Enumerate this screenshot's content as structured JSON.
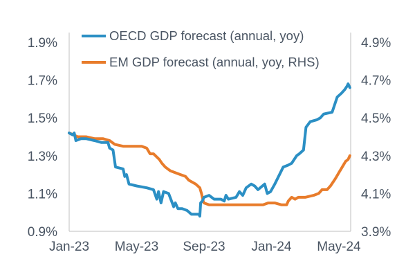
{
  "chart_data": {
    "type": "line",
    "title": "",
    "xlabel": "",
    "ylabel": "",
    "x_tick_labels": [
      "Jan-23",
      "May-23",
      "Sep-23",
      "Jan-24",
      "May-24"
    ],
    "x_tick_positions_months": [
      0,
      4,
      8,
      12,
      16
    ],
    "x_range_months": [
      0,
      16.7
    ],
    "y_left": {
      "ticks": [
        0.9,
        1.1,
        1.3,
        1.5,
        1.7,
        1.9
      ],
      "tick_labels": [
        "0.9%",
        "1.1%",
        "1.3%",
        "1.5%",
        "1.7%",
        "1.9%"
      ],
      "ylim": [
        0.9,
        1.9
      ]
    },
    "y_right": {
      "ticks": [
        3.9,
        4.1,
        4.3,
        4.5,
        4.7,
        4.9
      ],
      "tick_labels": [
        "3.9%",
        "4.1%",
        "4.3%",
        "4.5%",
        "4.7%",
        "4.9%"
      ],
      "ylim": [
        3.9,
        4.9
      ]
    },
    "legend_position": "top-left",
    "series": [
      {
        "name": "OECD GDP forecast (annual, yoy)",
        "axis": "left",
        "color": "#2b8fc4",
        "points": [
          [
            0.0,
            1.42
          ],
          [
            0.2,
            1.41
          ],
          [
            0.3,
            1.42
          ],
          [
            0.4,
            1.38
          ],
          [
            0.7,
            1.39
          ],
          [
            1.0,
            1.39
          ],
          [
            1.5,
            1.38
          ],
          [
            1.9,
            1.37
          ],
          [
            2.3,
            1.37
          ],
          [
            2.4,
            1.34
          ],
          [
            2.6,
            1.33
          ],
          [
            2.75,
            1.24
          ],
          [
            3.2,
            1.23
          ],
          [
            3.3,
            1.19
          ],
          [
            3.4,
            1.2
          ],
          [
            3.55,
            1.15
          ],
          [
            4.0,
            1.14
          ],
          [
            4.6,
            1.13
          ],
          [
            5.0,
            1.12
          ],
          [
            5.2,
            1.07
          ],
          [
            5.3,
            1.11
          ],
          [
            5.45,
            1.05
          ],
          [
            5.6,
            1.11
          ],
          [
            5.9,
            1.1
          ],
          [
            6.2,
            1.03
          ],
          [
            6.3,
            1.05
          ],
          [
            6.45,
            1.02
          ],
          [
            6.7,
            1.02
          ],
          [
            7.0,
            1.01
          ],
          [
            7.25,
            0.99
          ],
          [
            7.7,
            0.99
          ],
          [
            7.75,
            0.98
          ],
          [
            7.8,
            1.05
          ],
          [
            7.9,
            1.06
          ],
          [
            8.0,
            1.08
          ],
          [
            8.3,
            1.09
          ],
          [
            8.6,
            1.07
          ],
          [
            9.0,
            1.07
          ],
          [
            9.2,
            1.06
          ],
          [
            9.3,
            1.09
          ],
          [
            9.45,
            1.07
          ],
          [
            9.9,
            1.08
          ],
          [
            10.1,
            1.11
          ],
          [
            10.3,
            1.09
          ],
          [
            10.5,
            1.13
          ],
          [
            10.8,
            1.15
          ],
          [
            11.0,
            1.14
          ],
          [
            11.2,
            1.12
          ],
          [
            11.6,
            1.15
          ],
          [
            11.75,
            1.1
          ],
          [
            11.95,
            1.11
          ],
          [
            12.2,
            1.15
          ],
          [
            12.7,
            1.24
          ],
          [
            13.0,
            1.25
          ],
          [
            13.2,
            1.26
          ],
          [
            13.5,
            1.3
          ],
          [
            13.65,
            1.31
          ],
          [
            13.9,
            1.33
          ],
          [
            14.05,
            1.45
          ],
          [
            14.3,
            1.48
          ],
          [
            14.7,
            1.49
          ],
          [
            14.9,
            1.5
          ],
          [
            15.1,
            1.52
          ],
          [
            15.6,
            1.53
          ],
          [
            15.9,
            1.61
          ],
          [
            16.15,
            1.63
          ],
          [
            16.35,
            1.65
          ],
          [
            16.5,
            1.67
          ],
          [
            16.55,
            1.68
          ],
          [
            16.65,
            1.66
          ]
        ]
      },
      {
        "name": "EM GDP forecast (annual, yoy, RHS)",
        "axis": "right",
        "color": "#e87c2b",
        "points": [
          [
            0.0,
            4.42
          ],
          [
            0.5,
            4.4
          ],
          [
            1.0,
            4.4
          ],
          [
            1.5,
            4.39
          ],
          [
            2.0,
            4.39
          ],
          [
            2.4,
            4.38
          ],
          [
            2.7,
            4.36
          ],
          [
            3.2,
            4.35
          ],
          [
            3.6,
            4.35
          ],
          [
            4.3,
            4.35
          ],
          [
            4.6,
            4.34
          ],
          [
            4.8,
            4.31
          ],
          [
            5.0,
            4.31
          ],
          [
            5.35,
            4.28
          ],
          [
            5.5,
            4.26
          ],
          [
            5.7,
            4.24
          ],
          [
            6.0,
            4.22
          ],
          [
            6.3,
            4.21
          ],
          [
            6.6,
            4.2
          ],
          [
            6.9,
            4.19
          ],
          [
            7.1,
            4.17
          ],
          [
            7.3,
            4.16
          ],
          [
            7.5,
            4.15
          ],
          [
            7.75,
            4.13
          ],
          [
            7.85,
            4.1
          ],
          [
            7.95,
            4.06
          ],
          [
            8.0,
            4.05
          ],
          [
            8.3,
            4.04
          ],
          [
            8.8,
            4.04
          ],
          [
            9.3,
            4.04
          ],
          [
            9.8,
            4.04
          ],
          [
            10.2,
            4.04
          ],
          [
            10.8,
            4.04
          ],
          [
            11.5,
            4.04
          ],
          [
            11.8,
            4.05
          ],
          [
            12.2,
            4.05
          ],
          [
            12.6,
            4.04
          ],
          [
            12.9,
            4.04
          ],
          [
            13.0,
            4.06
          ],
          [
            13.2,
            4.08
          ],
          [
            13.4,
            4.07
          ],
          [
            13.6,
            4.08
          ],
          [
            14.0,
            4.08
          ],
          [
            14.5,
            4.09
          ],
          [
            14.8,
            4.1
          ],
          [
            15.0,
            4.12
          ],
          [
            15.3,
            4.12
          ],
          [
            15.5,
            4.14
          ],
          [
            15.8,
            4.18
          ],
          [
            16.0,
            4.21
          ],
          [
            16.2,
            4.24
          ],
          [
            16.4,
            4.27
          ],
          [
            16.55,
            4.28
          ],
          [
            16.65,
            4.3
          ]
        ]
      }
    ]
  }
}
